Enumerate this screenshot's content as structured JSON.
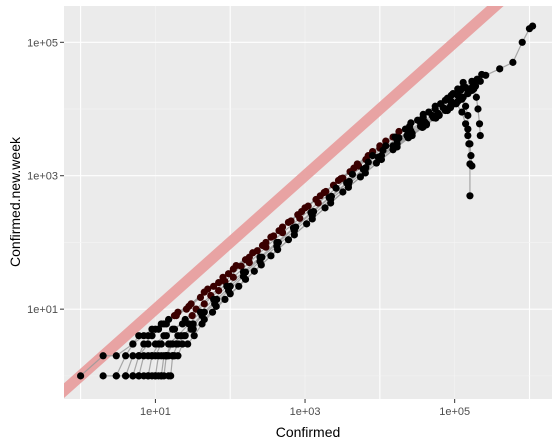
{
  "chart_data": {
    "type": "scatter",
    "title": "",
    "xlabel": "Confirmed",
    "ylabel": "Confirmed.new.week",
    "x_scale": "log10",
    "y_scale": "log10",
    "xlim": [
      0.6,
      2000000
    ],
    "ylim": [
      0.45,
      350000
    ],
    "x_ticks": [
      {
        "value": 10,
        "label": "1e+01"
      },
      {
        "value": 1000,
        "label": "1e+03"
      },
      {
        "value": 100000,
        "label": "1e+05"
      }
    ],
    "y_ticks": [
      {
        "value": 10,
        "label": "1e+01"
      },
      {
        "value": 1000,
        "label": "1e+03"
      },
      {
        "value": 100000,
        "label": "1e+05"
      }
    ],
    "grid": true,
    "legend": "none",
    "colors": {
      "panel": "#ebebeb",
      "grid_major": "#ffffff",
      "grid_minor": "#f5f5f5",
      "points": "#000000",
      "recent_points": "#3a0000",
      "paths": "#9a9a9a",
      "reference_line": "#e8a0a0"
    },
    "reference_line": {
      "slope": 1,
      "intercept": 0,
      "description": "y = x"
    },
    "series": [
      {
        "points": [
          [
            1,
            1
          ],
          [
            2,
            2
          ],
          [
            3,
            2
          ],
          [
            5,
            3
          ],
          [
            7,
            4
          ],
          [
            9,
            5
          ],
          [
            12,
            6
          ],
          [
            15,
            7
          ],
          [
            20,
            9
          ],
          [
            30,
            12
          ],
          [
            50,
            20
          ],
          [
            80,
            30
          ],
          [
            120,
            45
          ],
          [
            200,
            70
          ],
          [
            350,
            120
          ],
          [
            600,
            200
          ],
          [
            1000,
            330
          ],
          [
            1800,
            560
          ],
          [
            3000,
            900
          ],
          [
            5000,
            1500
          ],
          [
            8000,
            2300
          ],
          [
            12000,
            3300
          ],
          [
            18000,
            4600
          ],
          [
            26000,
            6200
          ],
          [
            38000,
            8300
          ],
          [
            55000,
            11000
          ],
          [
            80000,
            14500
          ],
          [
            120000,
            19000
          ],
          [
            180000,
            25000
          ],
          [
            260000,
            32000
          ],
          [
            400000,
            40000
          ],
          [
            600000,
            50000
          ],
          [
            800000,
            100000
          ],
          [
            1000000,
            160000
          ],
          [
            1100000,
            175000
          ]
        ]
      },
      {
        "points": [
          [
            2,
            1
          ],
          [
            3,
            1
          ],
          [
            4,
            2
          ],
          [
            5,
            3
          ],
          [
            6,
            4
          ],
          [
            8,
            4
          ],
          [
            10,
            5
          ],
          [
            13,
            6
          ],
          [
            18,
            8
          ],
          [
            28,
            11
          ],
          [
            45,
            18
          ],
          [
            70,
            25
          ],
          [
            110,
            40
          ],
          [
            180,
            60
          ],
          [
            300,
            100
          ],
          [
            500,
            170
          ],
          [
            900,
            290
          ],
          [
            1600,
            500
          ],
          [
            2800,
            850
          ],
          [
            4500,
            1300
          ],
          [
            7000,
            2000
          ],
          [
            10000,
            2800
          ],
          [
            15000,
            3800
          ],
          [
            22000,
            5000
          ],
          [
            32000,
            6800
          ],
          [
            45000,
            9000
          ],
          [
            65000,
            12000
          ],
          [
            90000,
            16000
          ],
          [
            130000,
            21000
          ],
          [
            170000,
            26000
          ]
        ]
      },
      {
        "points": [
          [
            3,
            1
          ],
          [
            4,
            1
          ],
          [
            5,
            2
          ],
          [
            6,
            2
          ],
          [
            7,
            3
          ],
          [
            9,
            4
          ],
          [
            11,
            5
          ],
          [
            14,
            6
          ],
          [
            19,
            8
          ],
          [
            26,
            10
          ],
          [
            40,
            15
          ],
          [
            60,
            22
          ],
          [
            95,
            34
          ],
          [
            160,
            55
          ],
          [
            270,
            90
          ],
          [
            450,
            150
          ],
          [
            800,
            260
          ],
          [
            1400,
            440
          ],
          [
            2400,
            720
          ],
          [
            4000,
            1150
          ],
          [
            6500,
            1750
          ],
          [
            10000,
            2600
          ],
          [
            16000,
            3800
          ],
          [
            25000,
            5500
          ],
          [
            38000,
            7500
          ],
          [
            55000,
            10000
          ],
          [
            75000,
            13500
          ],
          [
            95000,
            17000
          ],
          [
            110000,
            20000
          ],
          [
            130000,
            25000
          ]
        ]
      },
      {
        "points": [
          [
            5,
            1
          ],
          [
            6,
            1
          ],
          [
            7,
            2
          ],
          [
            8,
            2
          ],
          [
            9,
            2
          ],
          [
            11,
            3
          ],
          [
            14,
            4
          ],
          [
            18,
            5
          ],
          [
            25,
            7
          ],
          [
            35,
            10
          ],
          [
            55,
            16
          ],
          [
            85,
            26
          ],
          [
            140,
            44
          ],
          [
            230,
            75
          ],
          [
            380,
            125
          ],
          [
            650,
            210
          ],
          [
            1100,
            350
          ],
          [
            1900,
            580
          ],
          [
            3200,
            920
          ],
          [
            5200,
            1400
          ],
          [
            8000,
            2000
          ],
          [
            12000,
            2800
          ],
          [
            18000,
            3700
          ],
          [
            25000,
            4800
          ],
          [
            35000,
            6200
          ],
          [
            50000,
            8000
          ],
          [
            70000,
            10500
          ],
          [
            90000,
            13000
          ],
          [
            110000,
            16000
          ],
          [
            140000,
            21000
          ]
        ]
      },
      {
        "points": [
          [
            4,
            1
          ],
          [
            5,
            1
          ],
          [
            6,
            2
          ],
          [
            8,
            3
          ],
          [
            10,
            3
          ],
          [
            13,
            4
          ],
          [
            17,
            5
          ],
          [
            23,
            6
          ],
          [
            31,
            8
          ],
          [
            45,
            12
          ],
          [
            70,
            19
          ],
          [
            110,
            30
          ],
          [
            180,
            50
          ],
          [
            300,
            85
          ],
          [
            500,
            140
          ],
          [
            850,
            230
          ],
          [
            1500,
            390
          ],
          [
            2600,
            650
          ],
          [
            4300,
            1050
          ],
          [
            7000,
            1600
          ],
          [
            11000,
            2400
          ],
          [
            17000,
            3400
          ],
          [
            26000,
            4700
          ],
          [
            40000,
            6400
          ],
          [
            60000,
            8600
          ],
          [
            90000,
            11500
          ],
          [
            130000,
            15000
          ],
          [
            150000,
            17000
          ],
          [
            170000,
            19000
          ],
          [
            180000,
            20000
          ]
        ]
      },
      {
        "points": [
          [
            6,
            1
          ],
          [
            7,
            1
          ],
          [
            8,
            1
          ],
          [
            9,
            2
          ],
          [
            10,
            2
          ],
          [
            12,
            3
          ],
          [
            15,
            3
          ],
          [
            20,
            4
          ],
          [
            28,
            6
          ],
          [
            40,
            9
          ],
          [
            60,
            14
          ],
          [
            90,
            22
          ],
          [
            150,
            36
          ],
          [
            250,
            60
          ],
          [
            420,
            100
          ],
          [
            700,
            165
          ],
          [
            1200,
            280
          ],
          [
            2100,
            470
          ],
          [
            3600,
            780
          ],
          [
            6000,
            1250
          ],
          [
            9500,
            1900
          ],
          [
            15000,
            2800
          ],
          [
            23000,
            4000
          ],
          [
            35000,
            5500
          ],
          [
            52000,
            7400
          ],
          [
            75000,
            9500
          ],
          [
            100000,
            12000
          ],
          [
            125000,
            14000
          ],
          [
            140000,
            11000
          ],
          [
            150000,
            8000
          ],
          [
            150000,
            5000
          ],
          [
            155000,
            3000
          ],
          [
            160000,
            1500
          ],
          [
            160000,
            500
          ]
        ]
      },
      {
        "points": [
          [
            8,
            1
          ],
          [
            9,
            1
          ],
          [
            10,
            1
          ],
          [
            11,
            2
          ],
          [
            12,
            2
          ],
          [
            14,
            2
          ],
          [
            17,
            3
          ],
          [
            22,
            4
          ],
          [
            30,
            5
          ],
          [
            42,
            8
          ],
          [
            62,
            12
          ],
          [
            95,
            19
          ],
          [
            150,
            31
          ],
          [
            250,
            52
          ],
          [
            420,
            88
          ],
          [
            720,
            150
          ],
          [
            1250,
            255
          ],
          [
            2200,
            440
          ],
          [
            3800,
            740
          ],
          [
            6300,
            1200
          ],
          [
            10000,
            1850
          ],
          [
            16000,
            2750
          ],
          [
            25000,
            3900
          ],
          [
            38000,
            5400
          ],
          [
            56000,
            7300
          ],
          [
            80000,
            9500
          ],
          [
            105000,
            12000
          ],
          [
            125000,
            9000
          ],
          [
            140000,
            6000
          ],
          [
            150000,
            4000
          ],
          [
            160000,
            3000
          ],
          [
            165000,
            2000
          ],
          [
            170000,
            1400
          ]
        ]
      },
      {
        "points": [
          [
            10,
            1
          ],
          [
            11,
            1
          ],
          [
            12,
            1
          ],
          [
            13,
            2
          ],
          [
            14,
            2
          ],
          [
            16,
            3
          ],
          [
            19,
            3
          ],
          [
            24,
            4
          ],
          [
            32,
            6
          ],
          [
            45,
            9
          ],
          [
            66,
            14
          ],
          [
            100,
            22
          ],
          [
            160,
            36
          ],
          [
            265,
            60
          ],
          [
            440,
            100
          ],
          [
            750,
            170
          ],
          [
            1300,
            290
          ],
          [
            2250,
            490
          ],
          [
            3900,
            820
          ],
          [
            6500,
            1320
          ],
          [
            10500,
            2000
          ],
          [
            17000,
            3000
          ],
          [
            27000,
            4300
          ],
          [
            42000,
            6000
          ],
          [
            62000,
            8000
          ],
          [
            88000,
            10500
          ],
          [
            120000,
            14000
          ],
          [
            150000,
            19000
          ],
          [
            175000,
            22000
          ],
          [
            195000,
            15000
          ],
          [
            205000,
            10000
          ],
          [
            215000,
            6000
          ],
          [
            220000,
            4000
          ]
        ]
      },
      {
        "points": [
          [
            12,
            1
          ],
          [
            13,
            1
          ],
          [
            14,
            2
          ],
          [
            15,
            2
          ],
          [
            17,
            2
          ],
          [
            20,
            3
          ],
          [
            25,
            4
          ],
          [
            32,
            5
          ],
          [
            45,
            7
          ],
          [
            65,
            11
          ],
          [
            100,
            17
          ],
          [
            160,
            28
          ],
          [
            260,
            46
          ],
          [
            430,
            78
          ],
          [
            720,
            130
          ],
          [
            1250,
            225
          ],
          [
            2200,
            390
          ],
          [
            3800,
            670
          ],
          [
            6400,
            1100
          ],
          [
            10500,
            1750
          ],
          [
            17000,
            2700
          ],
          [
            27000,
            4000
          ],
          [
            42000,
            5800
          ],
          [
            62000,
            8100
          ],
          [
            88000,
            11000
          ],
          [
            120000,
            15000
          ],
          [
            160000,
            20000
          ],
          [
            200000,
            28000
          ],
          [
            230000,
            33000
          ]
        ]
      },
      {
        "points": [
          [
            15,
            1
          ],
          [
            16,
            1
          ],
          [
            17,
            2
          ],
          [
            18,
            2
          ],
          [
            20,
            2
          ],
          [
            23,
            3
          ],
          [
            27,
            3
          ],
          [
            33,
            4
          ],
          [
            42,
            6
          ],
          [
            58,
            9
          ],
          [
            85,
            14
          ],
          [
            130,
            22
          ],
          [
            210,
            37
          ],
          [
            350,
            63
          ],
          [
            600,
            110
          ],
          [
            1050,
            190
          ],
          [
            1850,
            330
          ],
          [
            3200,
            570
          ],
          [
            5500,
            960
          ],
          [
            9000,
            1550
          ],
          [
            15000,
            2450
          ],
          [
            24000,
            3700
          ],
          [
            37000,
            5300
          ],
          [
            55000,
            7400
          ],
          [
            80000,
            10000
          ],
          [
            110000,
            13000
          ],
          [
            150000,
            17000
          ],
          [
            190000,
            22000
          ],
          [
            220000,
            26000
          ]
        ]
      }
    ]
  }
}
